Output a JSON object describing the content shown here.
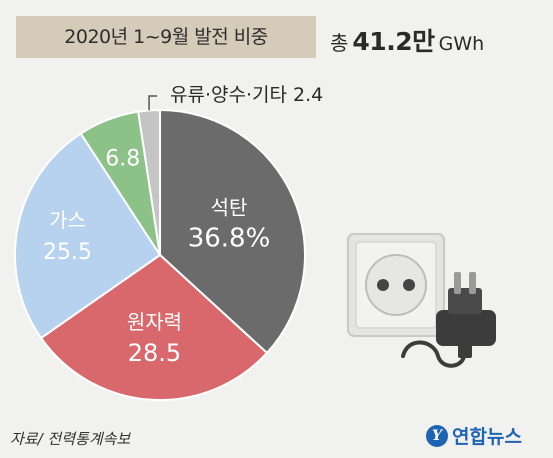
{
  "header": {
    "title": "2020년 1~9월 발전 비중",
    "total_label": "총",
    "total_value": "41.2만",
    "total_unit": "GWh"
  },
  "callout": {
    "label": "유류·양수·기타 2.4"
  },
  "footer": {
    "source": "자료/ 전력통계속보",
    "logo_text": "연합뉴스",
    "logo_mark": "Y"
  },
  "colors": {
    "coal": "#6b6b6b",
    "nuclear": "#d9686c",
    "gas": "#b7d2ee",
    "renewable": "#8cc188",
    "other": "#c4c4c4",
    "title_bg": "#d6cbb9",
    "logo": "#1e64b4"
  },
  "chart_data": {
    "type": "pie",
    "title": "2020년 1~9월 발전 비중",
    "slices": [
      {
        "name": "석탄",
        "value": 36.8,
        "label_value": "36.8%",
        "color": "#6b6b6b",
        "label_color": "#ffffff"
      },
      {
        "name": "원자력",
        "value": 28.5,
        "label_value": "28.5",
        "color": "#d9686c",
        "label_color": "#ffffff"
      },
      {
        "name": "가스",
        "value": 25.5,
        "label_value": "25.5",
        "color": "#b7d2ee",
        "label_color": "#ffffff"
      },
      {
        "name": "",
        "value": 6.8,
        "label_value": "6.8",
        "color": "#8cc188",
        "label_color": "#ffffff"
      },
      {
        "name": "유류·양수·기타",
        "value": 2.4,
        "label_value": "2.4",
        "color": "#c4c4c4",
        "label_color": "#2a2a2a"
      }
    ],
    "start_angle_deg": 0,
    "direction": "clockwise"
  }
}
